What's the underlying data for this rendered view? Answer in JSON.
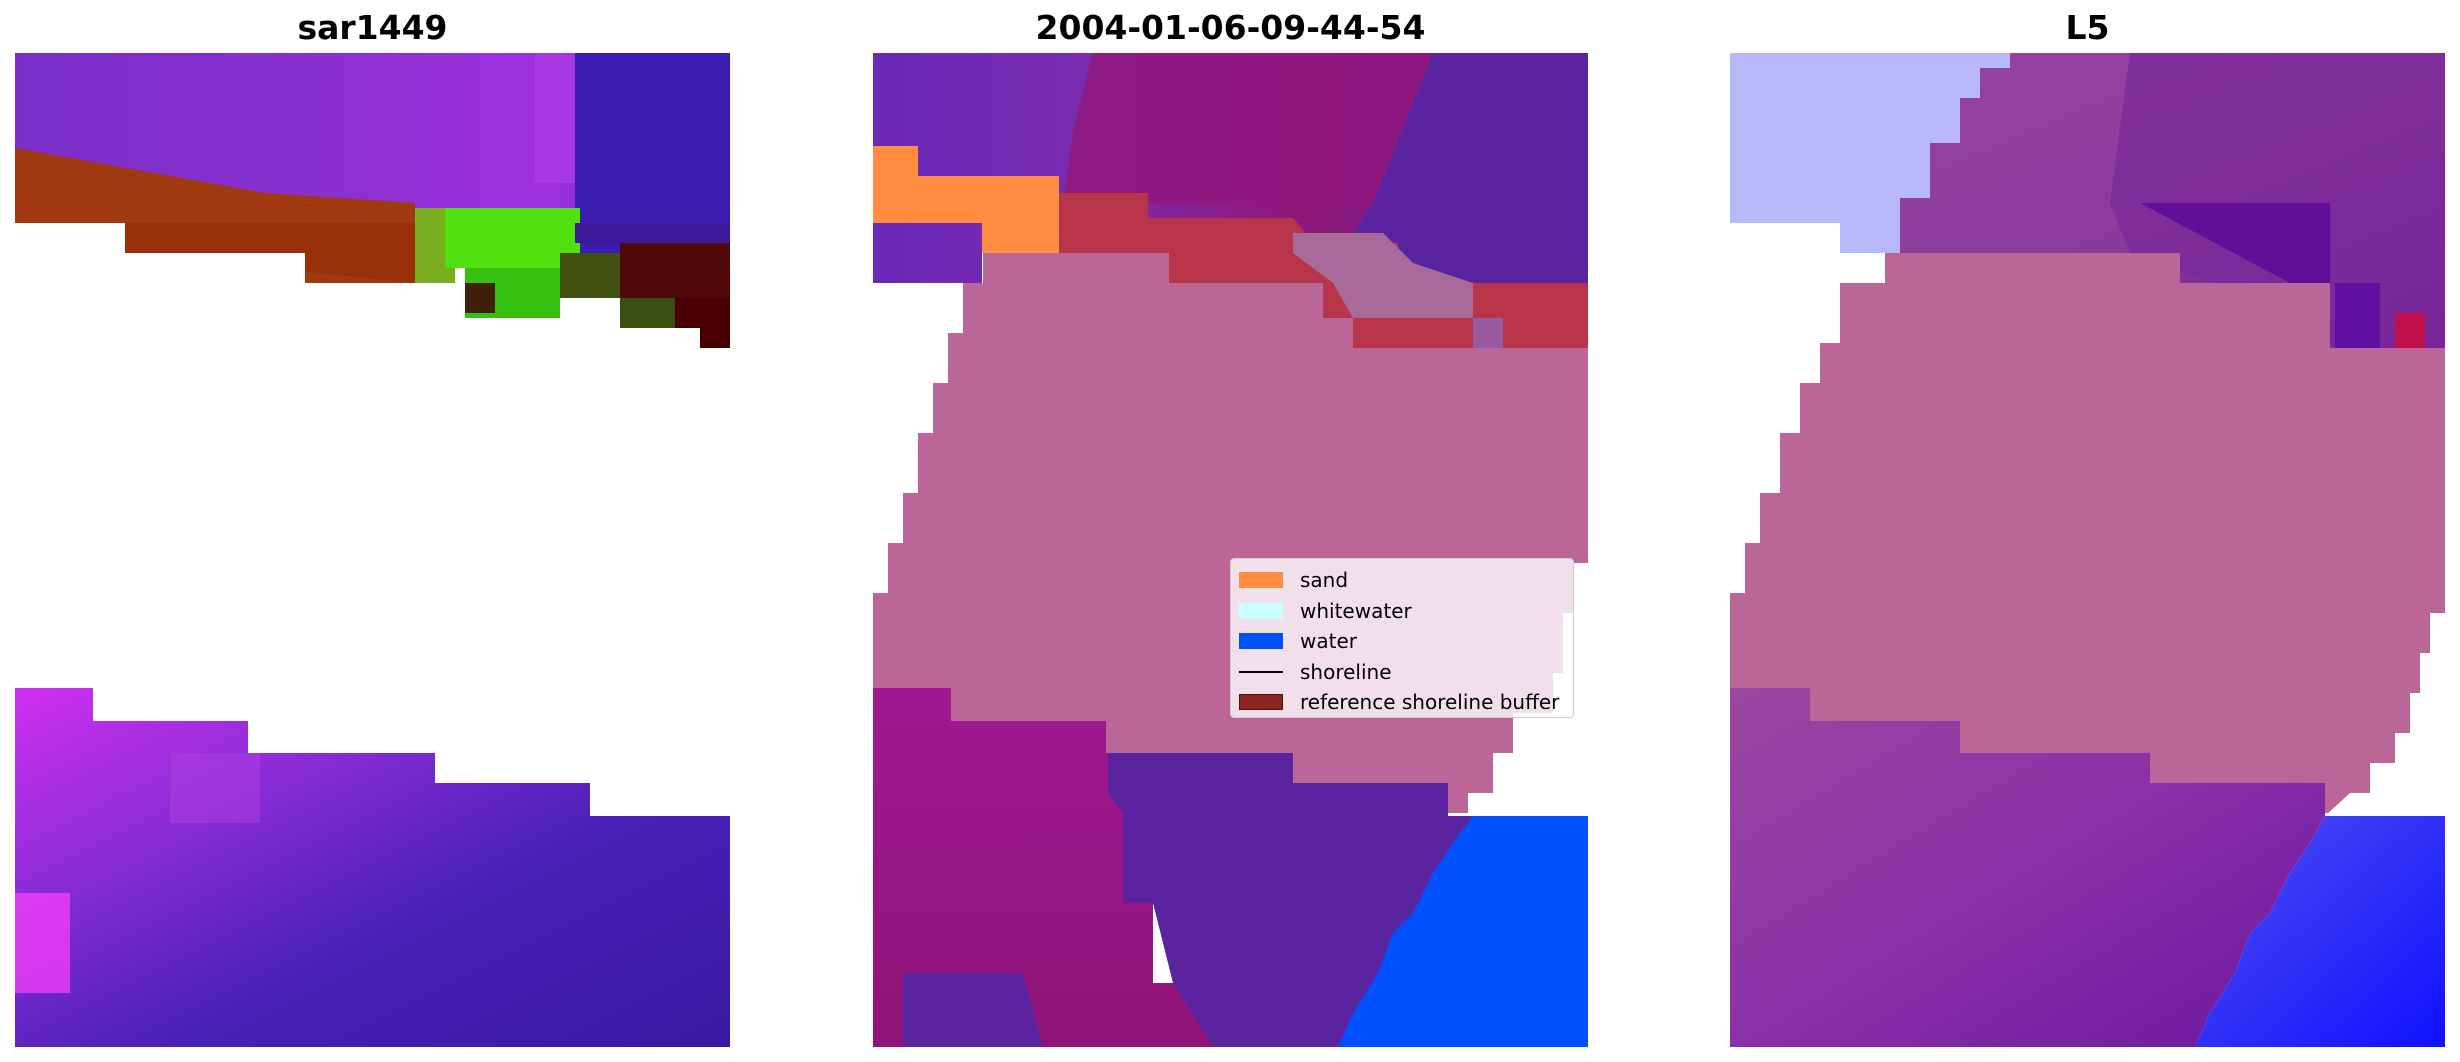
{
  "panels": [
    {
      "title": "sar1449"
    },
    {
      "title": "2004-01-06-09-44-54"
    },
    {
      "title": "L5"
    }
  ],
  "legend": {
    "items": [
      {
        "label": "sand",
        "color": "#ff8c40"
      },
      {
        "label": "whitewater",
        "color": "#c8ffff"
      },
      {
        "label": "water",
        "color": "#0050ff"
      },
      {
        "label": "shoreline",
        "color": "#000000"
      },
      {
        "label": "reference shoreline buffer",
        "color": "#8b2323"
      }
    ]
  }
}
